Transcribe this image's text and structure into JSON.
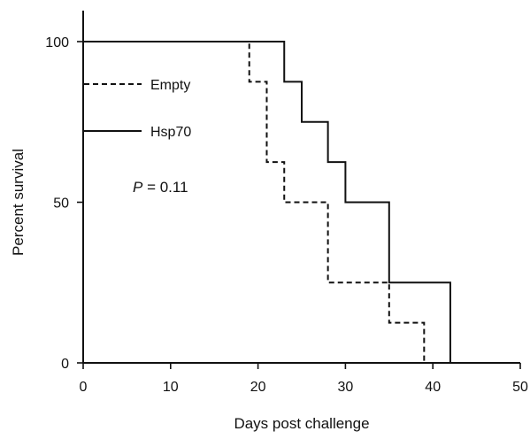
{
  "chart_data": {
    "type": "line",
    "subtype": "kaplan-meier-step",
    "title": "",
    "xlabel": "Days post challenge",
    "ylabel": "Percent survival",
    "xlim": [
      0,
      50
    ],
    "ylim": [
      0,
      100
    ],
    "xticks": [
      0,
      10,
      20,
      30,
      40,
      50
    ],
    "yticks": [
      0,
      50,
      100
    ],
    "grid": false,
    "legend_position": "top-left",
    "annotation": {
      "italic": "P",
      "text": " = 0.11"
    },
    "series": [
      {
        "name": "Empty",
        "line_style": "dashed",
        "color": "#111111",
        "x": [
          0,
          19,
          21,
          23,
          28,
          35,
          39
        ],
        "y": [
          100,
          87.5,
          62.5,
          50,
          25,
          12.5,
          0
        ]
      },
      {
        "name": "Hsp70",
        "line_style": "solid",
        "color": "#111111",
        "x": [
          0,
          23,
          25,
          28,
          30,
          35,
          42
        ],
        "y": [
          100,
          87.5,
          75,
          62.5,
          50,
          25,
          0
        ]
      }
    ]
  }
}
